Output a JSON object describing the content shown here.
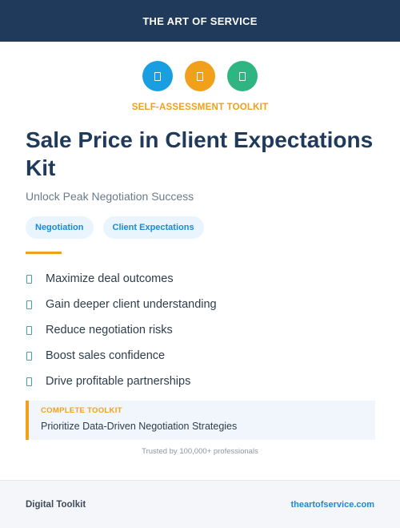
{
  "header": {
    "brand": "THE ART OF SERVICE",
    "background": "#1f3a5a"
  },
  "icons": [
    {
      "name": "document-icon",
      "color": "#1a9ee2"
    },
    {
      "name": "clipboard-icon",
      "color": "#f0a01a"
    },
    {
      "name": "checklist-icon",
      "color": "#2fb582"
    }
  ],
  "hero": {
    "eyebrow": "SELF-ASSESSMENT TOOLKIT",
    "title": "Sale Price in Client Expectations Kit",
    "subtitle": "Unlock Peak Negotiation Success"
  },
  "tags": [
    "Negotiation",
    "Client Expectations"
  ],
  "benefits": [
    "Maximize deal outcomes",
    "Gain deeper client understanding",
    "Reduce negotiation risks",
    "Boost sales confidence",
    "Drive profitable partnerships"
  ],
  "callout": {
    "label": "COMPLETE TOOLKIT",
    "text": "Prioritize Data-Driven Negotiation Strategies"
  },
  "trust": "Trusted by 100,000+ professionals",
  "footer": {
    "left": "Digital Toolkit",
    "right": "theartofservice.com"
  },
  "colors": {
    "accent": "#f0a01a",
    "link": "#1a8ad4",
    "check": "#2fb582"
  }
}
